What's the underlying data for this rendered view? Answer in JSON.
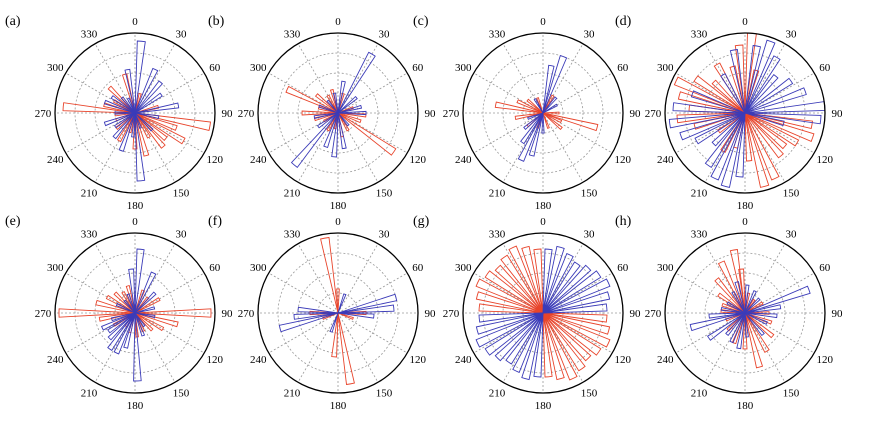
{
  "figure": {
    "angle_labels": [
      "0",
      "30",
      "60",
      "90",
      "120",
      "150",
      "180",
      "210",
      "240",
      "270",
      "300",
      "330"
    ],
    "series_colors": {
      "red": "#e8452c",
      "blue": "#3b3bb8"
    }
  },
  "chart_data": [
    {
      "type": "polar-bar",
      "panel": "(a)",
      "grid": true,
      "direction": "clockwise",
      "zero": "top",
      "rmax": 1.0,
      "series": [
        {
          "color": "red",
          "angles": [
            15,
            75,
            100,
            110,
            120,
            130,
            140,
            150,
            165,
            180,
            195,
            210,
            230,
            250,
            265,
            275,
            285,
            300,
            315,
            345
          ],
          "values": [
            0.25,
            0.3,
            0.95,
            0.55,
            0.7,
            0.5,
            0.55,
            0.35,
            0.55,
            0.45,
            0.25,
            0.4,
            0.3,
            0.25,
            0.25,
            0.9,
            0.4,
            0.3,
            0.45,
            0.5
          ]
        },
        {
          "color": "blue",
          "angles": [
            5,
            25,
            40,
            55,
            80,
            100,
            135,
            160,
            175,
            185,
            200,
            220,
            235,
            250,
            270,
            290,
            305,
            320,
            335,
            350
          ],
          "values": [
            0.9,
            0.6,
            0.5,
            0.4,
            0.55,
            0.3,
            0.3,
            0.2,
            0.85,
            0.3,
            0.5,
            0.4,
            0.3,
            0.4,
            0.25,
            0.4,
            0.35,
            0.25,
            0.2,
            0.55
          ]
        }
      ]
    },
    {
      "type": "polar-bar",
      "panel": "(b)",
      "grid": true,
      "direction": "clockwise",
      "zero": "top",
      "rmax": 1.0,
      "series": [
        {
          "color": "red",
          "angles": [
            15,
            70,
            95,
            110,
            125,
            150,
            170,
            190,
            210,
            240,
            255,
            270,
            285,
            295,
            310,
            330,
            345
          ],
          "values": [
            0.25,
            0.2,
            0.35,
            0.3,
            0.85,
            0.25,
            0.3,
            0.2,
            0.25,
            0.2,
            0.3,
            0.45,
            0.25,
            0.7,
            0.35,
            0.25,
            0.3
          ]
        },
        {
          "color": "blue",
          "angles": [
            10,
            30,
            50,
            75,
            90,
            140,
            170,
            185,
            200,
            220,
            235,
            260,
            290,
            320,
            350
          ],
          "values": [
            0.4,
            0.85,
            0.3,
            0.3,
            0.35,
            0.2,
            0.45,
            0.55,
            0.45,
            0.85,
            0.3,
            0.3,
            0.25,
            0.2,
            0.25
          ]
        }
      ]
    },
    {
      "type": "polar-bar",
      "panel": "(c)",
      "grid": true,
      "direction": "clockwise",
      "zero": "top",
      "rmax": 1.0,
      "series": [
        {
          "color": "red",
          "angles": [
            30,
            90,
            105,
            115,
            130,
            160,
            200,
            230,
            260,
            280,
            295,
            310,
            340
          ],
          "values": [
            0.25,
            0.2,
            0.7,
            0.25,
            0.3,
            0.2,
            0.2,
            0.25,
            0.35,
            0.6,
            0.35,
            0.25,
            0.2
          ]
        },
        {
          "color": "blue",
          "angles": [
            10,
            20,
            40,
            60,
            180,
            195,
            205,
            215,
            230,
            250,
            330
          ],
          "values": [
            0.6,
            0.75,
            0.25,
            0.2,
            0.25,
            0.55,
            0.65,
            0.45,
            0.3,
            0.2,
            0.2
          ]
        }
      ]
    },
    {
      "type": "polar-bar",
      "panel": "(d)",
      "grid": true,
      "direction": "clockwise",
      "zero": "top",
      "rmax": 1.0,
      "series": [
        {
          "color": "red",
          "angles": [
            5,
            15,
            100,
            110,
            120,
            130,
            140,
            155,
            165,
            175,
            195,
            210,
            235,
            255,
            265,
            275,
            285,
            295,
            305,
            315,
            330,
            345,
            355
          ],
          "values": [
            1.0,
            0.55,
            0.85,
            0.9,
            0.75,
            0.65,
            0.7,
            0.9,
            0.95,
            0.6,
            0.45,
            0.55,
            0.4,
            0.65,
            0.85,
            0.7,
            0.85,
            0.95,
            0.75,
            0.55,
            0.7,
            0.6,
            0.85
          ]
        },
        {
          "color": "blue",
          "angles": [
            10,
            20,
            30,
            40,
            55,
            70,
            85,
            95,
            105,
            185,
            195,
            205,
            215,
            225,
            240,
            250,
            262,
            275,
            290,
            330,
            350
          ],
          "values": [
            0.85,
            0.95,
            0.8,
            0.6,
            0.7,
            0.8,
            1.0,
            0.95,
            0.5,
            0.8,
            0.95,
            0.9,
            0.8,
            0.55,
            0.7,
            0.85,
            0.95,
            0.9,
            0.7,
            0.55,
            0.8
          ]
        }
      ]
    },
    {
      "type": "polar-bar",
      "panel": "(e)",
      "grid": true,
      "direction": "clockwise",
      "zero": "top",
      "rmax": 1.0,
      "series": [
        {
          "color": "red",
          "angles": [
            20,
            40,
            60,
            90,
            105,
            120,
            135,
            155,
            175,
            195,
            215,
            240,
            260,
            270,
            285,
            300,
            315,
            330,
            345
          ],
          "values": [
            0.3,
            0.25,
            0.35,
            0.95,
            0.55,
            0.4,
            0.3,
            0.25,
            0.3,
            0.25,
            0.2,
            0.3,
            0.45,
            0.95,
            0.5,
            0.4,
            0.35,
            0.3,
            0.35
          ]
        },
        {
          "color": "blue",
          "angles": [
            5,
            25,
            45,
            75,
            100,
            145,
            160,
            178,
            195,
            205,
            215,
            225,
            235,
            245,
            255,
            295,
            320,
            340,
            355
          ],
          "values": [
            0.8,
            0.55,
            0.35,
            0.25,
            0.25,
            0.2,
            0.3,
            0.85,
            0.45,
            0.55,
            0.55,
            0.45,
            0.4,
            0.45,
            0.3,
            0.25,
            0.2,
            0.25,
            0.55
          ]
        }
      ]
    },
    {
      "type": "polar-bar",
      "panel": "(f)",
      "grid": true,
      "direction": "clockwise",
      "zero": "top",
      "rmax": 1.0,
      "series": [
        {
          "color": "red",
          "angles": [
            350,
            0,
            170,
            185,
            90,
            270,
            110,
            250
          ],
          "values": [
            0.95,
            0.3,
            0.9,
            0.55,
            0.35,
            0.35,
            0.2,
            0.2
          ]
        },
        {
          "color": "blue",
          "angles": [
            75,
            85,
            95,
            255,
            265,
            275,
            20,
            200
          ],
          "values": [
            0.75,
            0.7,
            0.45,
            0.75,
            0.55,
            0.5,
            0.25,
            0.25
          ]
        }
      ]
    },
    {
      "type": "polar-bar",
      "panel": "(g)",
      "grid": true,
      "direction": "clockwise",
      "zero": "top",
      "rmax": 1.0,
      "series": [
        {
          "color": "red",
          "angles": [
            95,
            105,
            115,
            125,
            135,
            145,
            155,
            165,
            175,
            275,
            285,
            295,
            305,
            315,
            325,
            335,
            345,
            355
          ],
          "values": [
            0.8,
            0.85,
            0.9,
            0.85,
            0.8,
            0.85,
            0.9,
            0.85,
            0.8,
            0.8,
            0.85,
            0.9,
            0.85,
            0.8,
            0.85,
            0.9,
            0.85,
            0.8
          ]
        },
        {
          "color": "blue",
          "angles": [
            5,
            15,
            25,
            35,
            45,
            55,
            65,
            75,
            85,
            185,
            195,
            205,
            215,
            225,
            235,
            245,
            255,
            265
          ],
          "values": [
            0.8,
            0.85,
            0.8,
            0.75,
            0.8,
            0.85,
            0.9,
            0.85,
            0.8,
            0.8,
            0.85,
            0.8,
            0.75,
            0.8,
            0.85,
            0.9,
            0.85,
            0.8
          ]
        }
      ]
    },
    {
      "type": "polar-bar",
      "panel": "(h)",
      "grid": true,
      "direction": "clockwise",
      "zero": "top",
      "rmax": 1.0,
      "series": [
        {
          "color": "red",
          "angles": [
            10,
            35,
            60,
            90,
            110,
            130,
            150,
            165,
            180,
            200,
            225,
            250,
            275,
            290,
            305,
            320,
            335,
            350,
            355
          ],
          "values": [
            0.25,
            0.2,
            0.25,
            0.3,
            0.35,
            0.45,
            0.55,
            0.7,
            0.45,
            0.4,
            0.3,
            0.25,
            0.3,
            0.3,
            0.4,
            0.55,
            0.7,
            0.8,
            0.55
          ]
        },
        {
          "color": "blue",
          "angles": [
            5,
            25,
            45,
            70,
            80,
            95,
            115,
            140,
            175,
            190,
            205,
            220,
            235,
            255,
            265,
            280,
            300,
            330,
            345
          ],
          "values": [
            0.35,
            0.3,
            0.25,
            0.85,
            0.45,
            0.4,
            0.3,
            0.35,
            0.3,
            0.45,
            0.4,
            0.35,
            0.55,
            0.7,
            0.45,
            0.3,
            0.25,
            0.3,
            0.4
          ]
        }
      ]
    }
  ]
}
